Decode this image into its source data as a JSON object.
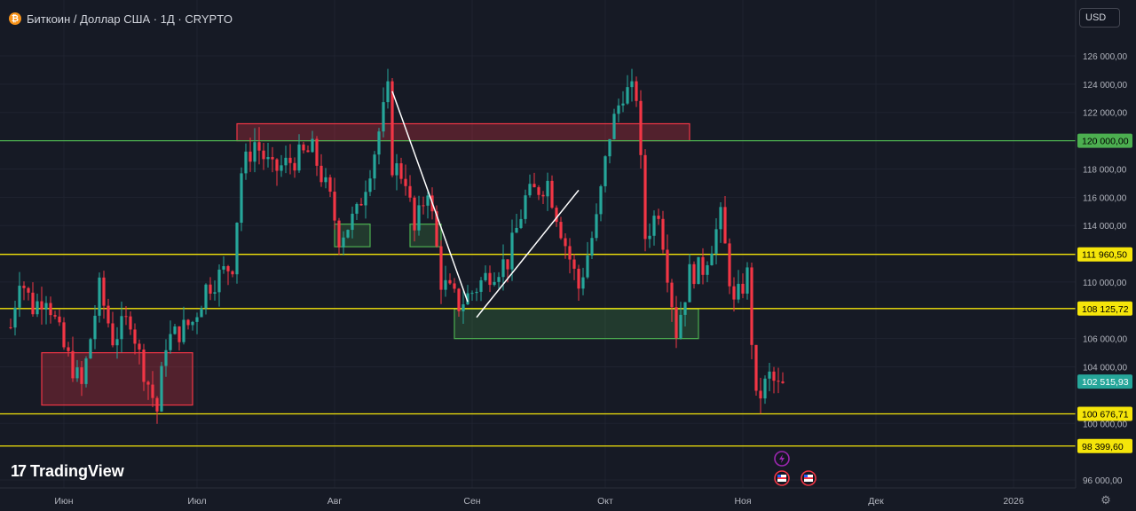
{
  "header": {
    "coin_icon": "bitcoin-icon",
    "symbol_line": "Биткоин / Доллар США · 1Д · CRYPTO"
  },
  "currency_select": {
    "value": "USD"
  },
  "branding": {
    "logo_mark": "17",
    "logo_text": "TradingView"
  },
  "settings_icon": "gear-icon",
  "event_markers": [
    {
      "icon": "lightning-icon",
      "color": "#9c27b0"
    },
    {
      "icon": "us-flag-icon",
      "color": "#f23645"
    },
    {
      "icon": "us-flag-icon",
      "color": "#f23645"
    }
  ],
  "colors": {
    "background": "#161a25",
    "up": "#26a69a",
    "down": "#f23645",
    "yellow_level": "#f5e50a",
    "green_level": "#4caf50",
    "grid": "#1f2330",
    "last_price_badge": "#26a69a"
  },
  "chart_data": {
    "type": "candlestick",
    "y_axis": {
      "range": [
        95000,
        127500
      ],
      "tick_labels": [
        "126 000,00",
        "124 000,00",
        "122 000,00",
        "118 000,00",
        "116 000,00",
        "114 000,00",
        "110 000,00",
        "106 000,00",
        "104 000,00",
        "100 000,00",
        "96 000,00"
      ],
      "tick_values": [
        126000,
        124000,
        122000,
        118000,
        116000,
        114000,
        110000,
        106000,
        104000,
        100000,
        96000
      ]
    },
    "x_axis": {
      "tick_labels": [
        "Июн",
        "Июл",
        "Авг",
        "Сен",
        "Окт",
        "Ноя",
        "Дек",
        "2026"
      ],
      "tick_dates": [
        "2025-06-01",
        "2025-07-01",
        "2025-08-01",
        "2025-09-01",
        "2025-10-01",
        "2025-11-01",
        "2025-12-01",
        "2026-01-01"
      ]
    },
    "date_range": [
      "2025-05-20",
      "2025-11-10"
    ],
    "last_price": {
      "value": 102515.93,
      "label": "102 515,93"
    },
    "price_levels": [
      {
        "value": 120000.0,
        "label": "120 000,00",
        "color": "green"
      },
      {
        "value": 111960.5,
        "label": "111 960,50",
        "color": "yellow"
      },
      {
        "value": 108125.72,
        "label": "108 125,72",
        "color": "yellow"
      },
      {
        "value": 100676.71,
        "label": "100 676,71",
        "color": "yellow"
      },
      {
        "value": 98399.6,
        "label": "98 399,60",
        "color": "yellow"
      }
    ],
    "zones": [
      {
        "color": "red",
        "x": [
          "2025-05-27",
          "2025-06-30"
        ],
        "y": [
          101300,
          105000
        ]
      },
      {
        "color": "red",
        "x": [
          "2025-07-10",
          "2025-10-20"
        ],
        "y": [
          120000,
          121200
        ]
      },
      {
        "color": "green",
        "x": [
          "2025-08-01",
          "2025-08-09"
        ],
        "y": [
          112500,
          114100
        ]
      },
      {
        "color": "green",
        "x": [
          "2025-08-18",
          "2025-08-25"
        ],
        "y": [
          112500,
          114100
        ]
      },
      {
        "color": "green",
        "x": [
          "2025-08-28",
          "2025-10-22"
        ],
        "y": [
          106000,
          108100
        ]
      }
    ],
    "trendlines": [
      {
        "from": [
          "2025-08-14",
          123500
        ],
        "to": [
          "2025-08-31",
          108600
        ]
      },
      {
        "from": [
          "2025-09-02",
          107500
        ],
        "to": [
          "2025-09-25",
          116500
        ]
      }
    ],
    "close_path": [
      [
        "2025-05-20",
        106800
      ],
      [
        "2025-05-22",
        110500
      ],
      [
        "2025-05-25",
        108200
      ],
      [
        "2025-05-28",
        109200
      ],
      [
        "2025-06-01",
        105300
      ],
      [
        "2025-06-05",
        102600
      ],
      [
        "2025-06-09",
        109500
      ],
      [
        "2025-06-12",
        106000
      ],
      [
        "2025-06-16",
        107500
      ],
      [
        "2025-06-18",
        104800
      ],
      [
        "2025-06-22",
        100900
      ],
      [
        "2025-06-24",
        105800
      ],
      [
        "2025-06-30",
        107200
      ],
      [
        "2025-07-03",
        109600
      ],
      [
        "2025-07-09",
        111300
      ],
      [
        "2025-07-11",
        117800
      ],
      [
        "2025-07-14",
        119900
      ],
      [
        "2025-07-18",
        117800
      ],
      [
        "2025-07-23",
        118700
      ],
      [
        "2025-07-27",
        119300
      ],
      [
        "2025-07-31",
        115800
      ],
      [
        "2025-08-02",
        113200
      ],
      [
        "2025-08-06",
        114800
      ],
      [
        "2025-08-10",
        119300
      ],
      [
        "2025-08-13",
        123400
      ],
      [
        "2025-08-14",
        118300
      ],
      [
        "2025-08-17",
        117400
      ],
      [
        "2025-08-19",
        113500
      ],
      [
        "2025-08-22",
        116800
      ],
      [
        "2025-08-25",
        110100
      ],
      [
        "2025-08-29",
        108400
      ],
      [
        "2025-09-01",
        109300
      ],
      [
        "2025-09-05",
        110700
      ],
      [
        "2025-09-09",
        111500
      ],
      [
        "2025-09-13",
        115900
      ],
      [
        "2025-09-18",
        117100
      ],
      [
        "2025-09-22",
        112700
      ],
      [
        "2025-09-25",
        109600
      ],
      [
        "2025-09-29",
        114300
      ],
      [
        "2025-10-02",
        120500
      ],
      [
        "2025-10-05",
        123500
      ],
      [
        "2025-10-08",
        123300
      ],
      [
        "2025-10-10",
        113200
      ],
      [
        "2025-10-13",
        115200
      ],
      [
        "2025-10-17",
        106500
      ],
      [
        "2025-10-20",
        110600
      ],
      [
        "2025-10-23",
        111000
      ],
      [
        "2025-10-27",
        114500
      ],
      [
        "2025-10-30",
        108300
      ],
      [
        "2025-11-02",
        110500
      ],
      [
        "2025-11-04",
        101500
      ],
      [
        "2025-11-07",
        103300
      ],
      [
        "2025-11-09",
        102516
      ]
    ]
  }
}
